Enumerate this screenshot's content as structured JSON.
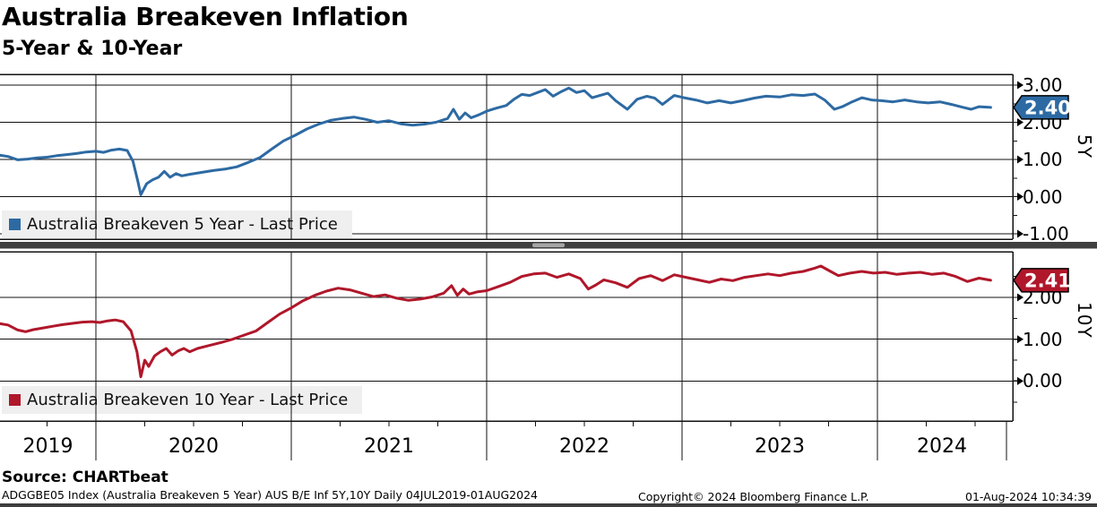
{
  "header": {
    "title": "Australia Breakeven Inflation",
    "subtitle": "5-Year & 10-Year"
  },
  "footer": {
    "source": "Source: CHARTbeat",
    "index_info": "ADGGBE05 Index (Australia Breakeven 5 Year) AUS B/E Inf 5Y,10Y  Daily 04JUL2019-01AUG2024",
    "copyright": "Copyright© 2024 Bloomberg Finance L.P.",
    "timestamp": "01-Aug-2024 10:34:39"
  },
  "chart_data": {
    "type": "line",
    "x_unit": "decimal_year",
    "x_range": [
      2019.5,
      2024.66
    ],
    "grid": true,
    "x_ticks": {
      "years": [
        2019,
        2020,
        2021,
        2022,
        2023,
        2024
      ],
      "year_labels": [
        "2019",
        "2020",
        "2021",
        "2022",
        "2023",
        "2024"
      ]
    },
    "panels": [
      {
        "axis_label": "5Y",
        "legend": "Australia Breakeven 5 Year - Last Price",
        "color": "#2d6aa3",
        "last_price": "2.40",
        "last_value": 2.4,
        "y_tick_values": [
          3,
          2,
          1,
          0,
          -1
        ],
        "y_tick_labels": [
          "3.00",
          "2.00",
          "1.00",
          "0.00",
          "-1.00"
        ],
        "y_minor_ticks": [
          2.5,
          1.5,
          0.5,
          -0.5
        ],
        "y_range": [
          -1.14,
          3.29
        ],
        "series": [
          [
            2019.5,
            1.12
          ],
          [
            2019.55,
            1.08
          ],
          [
            2019.6,
            0.99
          ],
          [
            2019.65,
            1.01
          ],
          [
            2019.7,
            1.04
          ],
          [
            2019.75,
            1.06
          ],
          [
            2019.8,
            1.1
          ],
          [
            2019.85,
            1.13
          ],
          [
            2019.9,
            1.16
          ],
          [
            2019.95,
            1.2
          ],
          [
            2020.0,
            1.22
          ],
          [
            2020.04,
            1.19
          ],
          [
            2020.08,
            1.25
          ],
          [
            2020.12,
            1.28
          ],
          [
            2020.16,
            1.24
          ],
          [
            2020.19,
            0.95
          ],
          [
            2020.215,
            0.4
          ],
          [
            2020.23,
            0.05
          ],
          [
            2020.26,
            0.35
          ],
          [
            2020.29,
            0.45
          ],
          [
            2020.32,
            0.52
          ],
          [
            2020.35,
            0.68
          ],
          [
            2020.38,
            0.52
          ],
          [
            2020.41,
            0.62
          ],
          [
            2020.44,
            0.56
          ],
          [
            2020.48,
            0.6
          ],
          [
            2020.54,
            0.65
          ],
          [
            2020.6,
            0.7
          ],
          [
            2020.66,
            0.74
          ],
          [
            2020.72,
            0.8
          ],
          [
            2020.78,
            0.92
          ],
          [
            2020.84,
            1.05
          ],
          [
            2020.9,
            1.28
          ],
          [
            2020.96,
            1.5
          ],
          [
            2021.02,
            1.65
          ],
          [
            2021.08,
            1.82
          ],
          [
            2021.14,
            1.95
          ],
          [
            2021.2,
            2.05
          ],
          [
            2021.26,
            2.1
          ],
          [
            2021.32,
            2.14
          ],
          [
            2021.38,
            2.08
          ],
          [
            2021.44,
            2.0
          ],
          [
            2021.5,
            2.04
          ],
          [
            2021.56,
            1.96
          ],
          [
            2021.62,
            1.92
          ],
          [
            2021.68,
            1.95
          ],
          [
            2021.74,
            2.0
          ],
          [
            2021.8,
            2.1
          ],
          [
            2021.83,
            2.35
          ],
          [
            2021.86,
            2.08
          ],
          [
            2021.89,
            2.25
          ],
          [
            2021.92,
            2.12
          ],
          [
            2021.96,
            2.2
          ],
          [
            2022.0,
            2.3
          ],
          [
            2022.05,
            2.38
          ],
          [
            2022.1,
            2.45
          ],
          [
            2022.14,
            2.62
          ],
          [
            2022.18,
            2.75
          ],
          [
            2022.22,
            2.72
          ],
          [
            2022.26,
            2.8
          ],
          [
            2022.3,
            2.88
          ],
          [
            2022.34,
            2.7
          ],
          [
            2022.38,
            2.82
          ],
          [
            2022.42,
            2.92
          ],
          [
            2022.46,
            2.8
          ],
          [
            2022.5,
            2.85
          ],
          [
            2022.54,
            2.66
          ],
          [
            2022.58,
            2.72
          ],
          [
            2022.62,
            2.78
          ],
          [
            2022.66,
            2.58
          ],
          [
            2022.72,
            2.35
          ],
          [
            2022.77,
            2.62
          ],
          [
            2022.82,
            2.7
          ],
          [
            2022.86,
            2.65
          ],
          [
            2022.9,
            2.48
          ],
          [
            2022.96,
            2.72
          ],
          [
            2023.01,
            2.66
          ],
          [
            2023.07,
            2.6
          ],
          [
            2023.13,
            2.52
          ],
          [
            2023.19,
            2.58
          ],
          [
            2023.25,
            2.52
          ],
          [
            2023.31,
            2.58
          ],
          [
            2023.37,
            2.65
          ],
          [
            2023.43,
            2.7
          ],
          [
            2023.5,
            2.68
          ],
          [
            2023.56,
            2.74
          ],
          [
            2023.62,
            2.72
          ],
          [
            2023.68,
            2.76
          ],
          [
            2023.73,
            2.6
          ],
          [
            2023.78,
            2.35
          ],
          [
            2023.82,
            2.42
          ],
          [
            2023.87,
            2.55
          ],
          [
            2023.92,
            2.66
          ],
          [
            2023.97,
            2.6
          ],
          [
            2024.02,
            2.58
          ],
          [
            2024.08,
            2.55
          ],
          [
            2024.14,
            2.6
          ],
          [
            2024.2,
            2.55
          ],
          [
            2024.26,
            2.52
          ],
          [
            2024.32,
            2.55
          ],
          [
            2024.38,
            2.48
          ],
          [
            2024.44,
            2.4
          ],
          [
            2024.48,
            2.35
          ],
          [
            2024.52,
            2.42
          ],
          [
            2024.58,
            2.4
          ]
        ]
      },
      {
        "axis_label": "10Y",
        "legend": "Australia Breakeven 10 Year - Last Price",
        "color": "#b0172a",
        "last_price": "2.41",
        "last_value": 2.41,
        "y_tick_values": [
          2,
          1,
          0
        ],
        "y_tick_labels": [
          "2.00",
          "1.00",
          "0.00"
        ],
        "y_minor_ticks": [
          2.5,
          1.5,
          0.5,
          -0.5
        ],
        "y_range": [
          -0.96,
          3.09
        ],
        "series": [
          [
            2019.5,
            1.38
          ],
          [
            2019.55,
            1.34
          ],
          [
            2019.6,
            1.22
          ],
          [
            2019.64,
            1.18
          ],
          [
            2019.68,
            1.23
          ],
          [
            2019.73,
            1.27
          ],
          [
            2019.78,
            1.31
          ],
          [
            2019.83,
            1.35
          ],
          [
            2019.88,
            1.38
          ],
          [
            2019.93,
            1.41
          ],
          [
            2019.98,
            1.42
          ],
          [
            2020.02,
            1.4
          ],
          [
            2020.06,
            1.44
          ],
          [
            2020.1,
            1.46
          ],
          [
            2020.14,
            1.42
          ],
          [
            2020.18,
            1.2
          ],
          [
            2020.21,
            0.7
          ],
          [
            2020.23,
            0.1
          ],
          [
            2020.25,
            0.5
          ],
          [
            2020.27,
            0.35
          ],
          [
            2020.3,
            0.6
          ],
          [
            2020.33,
            0.7
          ],
          [
            2020.36,
            0.78
          ],
          [
            2020.39,
            0.62
          ],
          [
            2020.42,
            0.72
          ],
          [
            2020.45,
            0.78
          ],
          [
            2020.48,
            0.7
          ],
          [
            2020.52,
            0.78
          ],
          [
            2020.58,
            0.85
          ],
          [
            2020.64,
            0.92
          ],
          [
            2020.7,
            1.0
          ],
          [
            2020.76,
            1.1
          ],
          [
            2020.82,
            1.2
          ],
          [
            2020.88,
            1.4
          ],
          [
            2020.94,
            1.6
          ],
          [
            2021.0,
            1.75
          ],
          [
            2021.06,
            1.92
          ],
          [
            2021.12,
            2.05
          ],
          [
            2021.18,
            2.15
          ],
          [
            2021.24,
            2.22
          ],
          [
            2021.3,
            2.18
          ],
          [
            2021.36,
            2.1
          ],
          [
            2021.42,
            2.02
          ],
          [
            2021.48,
            2.06
          ],
          [
            2021.54,
            1.98
          ],
          [
            2021.6,
            1.93
          ],
          [
            2021.66,
            1.96
          ],
          [
            2021.72,
            2.01
          ],
          [
            2021.78,
            2.1
          ],
          [
            2021.82,
            2.28
          ],
          [
            2021.85,
            2.05
          ],
          [
            2021.88,
            2.2
          ],
          [
            2021.91,
            2.08
          ],
          [
            2021.95,
            2.13
          ],
          [
            2022.0,
            2.16
          ],
          [
            2022.06,
            2.26
          ],
          [
            2022.12,
            2.36
          ],
          [
            2022.18,
            2.5
          ],
          [
            2022.24,
            2.56
          ],
          [
            2022.3,
            2.58
          ],
          [
            2022.36,
            2.48
          ],
          [
            2022.42,
            2.56
          ],
          [
            2022.48,
            2.45
          ],
          [
            2022.52,
            2.2
          ],
          [
            2022.56,
            2.3
          ],
          [
            2022.6,
            2.42
          ],
          [
            2022.66,
            2.35
          ],
          [
            2022.72,
            2.24
          ],
          [
            2022.78,
            2.45
          ],
          [
            2022.84,
            2.52
          ],
          [
            2022.9,
            2.4
          ],
          [
            2022.96,
            2.54
          ],
          [
            2023.02,
            2.48
          ],
          [
            2023.08,
            2.42
          ],
          [
            2023.14,
            2.36
          ],
          [
            2023.2,
            2.44
          ],
          [
            2023.26,
            2.4
          ],
          [
            2023.32,
            2.48
          ],
          [
            2023.38,
            2.52
          ],
          [
            2023.44,
            2.56
          ],
          [
            2023.5,
            2.52
          ],
          [
            2023.56,
            2.58
          ],
          [
            2023.62,
            2.62
          ],
          [
            2023.68,
            2.7
          ],
          [
            2023.71,
            2.75
          ],
          [
            2023.76,
            2.62
          ],
          [
            2023.8,
            2.52
          ],
          [
            2023.86,
            2.58
          ],
          [
            2023.92,
            2.62
          ],
          [
            2023.98,
            2.58
          ],
          [
            2024.04,
            2.6
          ],
          [
            2024.1,
            2.55
          ],
          [
            2024.16,
            2.58
          ],
          [
            2024.22,
            2.6
          ],
          [
            2024.28,
            2.55
          ],
          [
            2024.34,
            2.58
          ],
          [
            2024.4,
            2.5
          ],
          [
            2024.46,
            2.38
          ],
          [
            2024.52,
            2.46
          ],
          [
            2024.58,
            2.41
          ]
        ]
      }
    ],
    "colors": {
      "grid": "#111111",
      "frame": "#000000",
      "separator_bar": "#3f3f3f",
      "separator_grip": "#a6a6a6",
      "legend_bg": "#efefef",
      "tag_text": "#ffffff"
    }
  }
}
